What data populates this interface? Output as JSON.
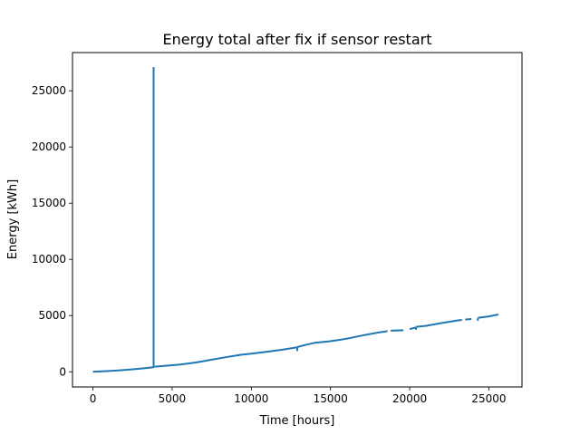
{
  "chart_data": {
    "type": "line",
    "title": "Energy total after fix if sensor restart",
    "xlabel": "Time [hours]",
    "ylabel": "Energy [kWh]",
    "xlim": [
      -1290,
      27090
    ],
    "ylim": [
      -1350,
      28400
    ],
    "xticks": [
      0,
      5000,
      10000,
      15000,
      20000,
      25000
    ],
    "yticks": [
      0,
      5000,
      10000,
      15000,
      20000,
      25000
    ],
    "grid": false,
    "legend": "none",
    "colors": {
      "line": "#1f77b4",
      "axes": "#000000",
      "background": "#ffffff"
    },
    "series": [
      {
        "name": "",
        "segments": [
          [
            [
              0,
              0
            ],
            [
              400,
              25
            ],
            [
              1000,
              70
            ],
            [
              2000,
              160
            ],
            [
              3000,
              280
            ],
            [
              3830,
              410
            ]
          ],
          [
            [
              3830,
              410
            ],
            [
              3830,
              27100
            ]
          ],
          [
            [
              3830,
              27100
            ],
            [
              3830,
              450
            ]
          ],
          [
            [
              3830,
              450
            ],
            [
              4500,
              520
            ],
            [
              5500,
              640
            ],
            [
              6500,
              830
            ],
            [
              7500,
              1080
            ],
            [
              8500,
              1330
            ],
            [
              9200,
              1480
            ]
          ],
          [
            [
              9200,
              1480
            ],
            [
              9200,
              1380
            ]
          ],
          [
            [
              9200,
              1490
            ],
            [
              10000,
              1610
            ],
            [
              11000,
              1790
            ],
            [
              12000,
              1980
            ],
            [
              12900,
              2180
            ]
          ],
          [
            [
              12900,
              2180
            ],
            [
              12900,
              1850
            ]
          ],
          [
            [
              12900,
              2200
            ],
            [
              13500,
              2420
            ],
            [
              14000,
              2580
            ],
            [
              15000,
              2720
            ],
            [
              16000,
              2940
            ],
            [
              17000,
              3230
            ],
            [
              18000,
              3490
            ],
            [
              18600,
              3620
            ]
          ],
          [
            [
              18800,
              3660
            ],
            [
              19600,
              3700
            ]
          ],
          [
            [
              20000,
              3800
            ],
            [
              20400,
              3950
            ]
          ],
          [
            [
              20400,
              3950
            ],
            [
              20400,
              3740
            ]
          ],
          [
            [
              20400,
              4000
            ],
            [
              21000,
              4080
            ],
            [
              22000,
              4330
            ],
            [
              23000,
              4570
            ],
            [
              23300,
              4620
            ]
          ],
          [
            [
              23500,
              4650
            ],
            [
              23900,
              4700
            ]
          ],
          [
            [
              24300,
              4760
            ],
            [
              24300,
              4540
            ]
          ],
          [
            [
              24300,
              4800
            ],
            [
              25000,
              4930
            ],
            [
              25600,
              5100
            ]
          ]
        ]
      }
    ]
  }
}
